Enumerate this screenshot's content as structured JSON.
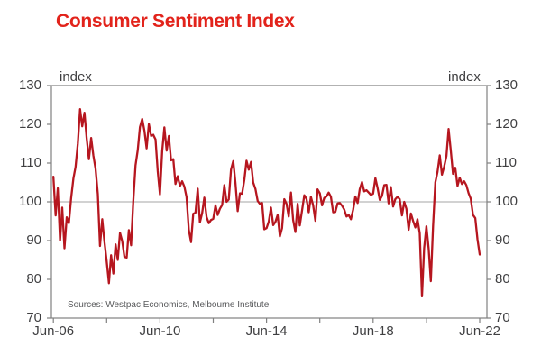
{
  "title": "Consumer Sentiment Index",
  "unit_left": "index",
  "unit_right": "index",
  "source_note": "Sources: Westpac Economics, Melbourne Institute",
  "colors": {
    "title": "#e2231b",
    "line": "#b6161f",
    "axis": "#808080",
    "reference_line": "#a6a6a6",
    "tick_label": "#3f3f41",
    "source_text": "#58595b"
  },
  "chart_data": {
    "type": "line",
    "title": "Consumer Sentiment Index",
    "series_name": "Consumer Sentiment Index (Westpac Economics, Melbourne Institute)",
    "frequency": "monthly",
    "x_start": "Jun-2006",
    "x_end": "Jun-2022",
    "xlabel": "",
    "ylabel": "index",
    "ylim": [
      70,
      130
    ],
    "y_ticks": [
      130,
      120,
      110,
      100,
      90,
      80,
      70
    ],
    "x_tick_labels": [
      "Jun-06",
      "Jun-10",
      "Jun-14",
      "Jun-18",
      "Jun-22"
    ],
    "x_tick_month_offsets": [
      0,
      48,
      96,
      144,
      192
    ],
    "minor_x_tick_month_offsets": [
      24,
      72,
      120,
      168
    ],
    "reference_line": 100,
    "grid": "horizontal reference line at 100 only",
    "legend_position": "none",
    "values": [
      106.5,
      96.5,
      103.5,
      90.0,
      98.5,
      88.0,
      96.0,
      94.5,
      101.0,
      106.0,
      109.0,
      115.0,
      123.9,
      119.5,
      123.0,
      116.5,
      111.0,
      116.5,
      112.0,
      108.5,
      102.0,
      88.6,
      95.5,
      89.8,
      84.7,
      79.0,
      86.2,
      81.5,
      89.0,
      85.0,
      92.0,
      89.9,
      85.8,
      85.6,
      92.7,
      88.8,
      100.1,
      109.4,
      113.4,
      119.3,
      121.4,
      118.3,
      113.8,
      120.1,
      117.0,
      117.3,
      116.1,
      108.0,
      101.9,
      113.1,
      119.2,
      113.2,
      117.0,
      110.7,
      111.0,
      104.6,
      106.6,
      104.1,
      105.3,
      103.9,
      101.2,
      92.8,
      89.6,
      96.9,
      97.2,
      103.4,
      94.7,
      97.1,
      101.1,
      96.1,
      94.5,
      95.3,
      95.6,
      99.1,
      96.6,
      98.2,
      99.2,
      104.3,
      100.0,
      100.6,
      108.3,
      110.5,
      104.9,
      97.6,
      102.2,
      102.1,
      105.7,
      110.6,
      108.3,
      110.3,
      105.0,
      103.3,
      100.2,
      99.5,
      99.7,
      92.9,
      93.2,
      94.9,
      98.5,
      94.0,
      94.8,
      96.6,
      91.1,
      93.2,
      100.7,
      99.5,
      96.2,
      102.4,
      95.3,
      92.2,
      99.5,
      93.9,
      97.8,
      101.7,
      100.8,
      97.3,
      101.3,
      99.1,
      95.1,
      103.2,
      102.2,
      99.1,
      101.0,
      101.4,
      102.4,
      101.3,
      97.3,
      97.4,
      99.6,
      99.7,
      99.0,
      98.0,
      96.2,
      96.6,
      95.5,
      97.9,
      101.4,
      99.7,
      103.3,
      105.1,
      102.7,
      103.0,
      102.4,
      101.8,
      102.1,
      106.1,
      103.6,
      100.5,
      101.5,
      104.3,
      104.4,
      99.6,
      103.8,
      98.8,
      100.7,
      101.3,
      100.7,
      96.5,
      100.0,
      98.2,
      92.8,
      97.0,
      95.1,
      93.4,
      95.5,
      91.9,
      75.6,
      88.1,
      93.7,
      87.9,
      79.5,
      93.8,
      105.0,
      107.7,
      112.0,
      107.0,
      109.1,
      111.8,
      118.8,
      113.1,
      107.2,
      108.8,
      104.1,
      106.2,
      104.6,
      105.3,
      104.3,
      102.2,
      100.8,
      96.6,
      95.8,
      90.4,
      86.4
    ]
  }
}
